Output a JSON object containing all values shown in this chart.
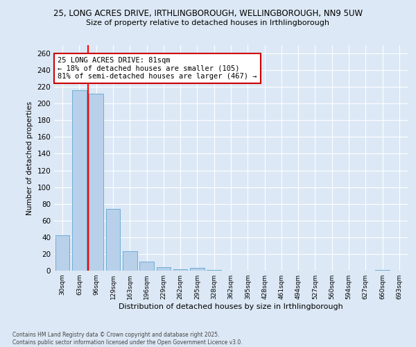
{
  "title1": "25, LONG ACRES DRIVE, IRTHLINGBOROUGH, WELLINGBOROUGH, NN9 5UW",
  "title2": "Size of property relative to detached houses in Irthlingborough",
  "xlabel": "Distribution of detached houses by size in Irthlingborough",
  "ylabel": "Number of detached properties",
  "bar_values": [
    42,
    216,
    212,
    74,
    23,
    11,
    4,
    2,
    3,
    1,
    0,
    0,
    0,
    0,
    0,
    0,
    0,
    0,
    0,
    1,
    0
  ],
  "bar_labels": [
    "30sqm",
    "63sqm",
    "96sqm",
    "129sqm",
    "163sqm",
    "196sqm",
    "229sqm",
    "262sqm",
    "295sqm",
    "328sqm",
    "362sqm",
    "395sqm",
    "428sqm",
    "461sqm",
    "494sqm",
    "527sqm",
    "560sqm",
    "594sqm",
    "627sqm",
    "660sqm",
    "693sqm"
  ],
  "bar_color": "#b8d0ea",
  "bar_edge_color": "#6baed6",
  "red_line_x": 1.5,
  "annotation_text": "25 LONG ACRES DRIVE: 81sqm\n← 18% of detached houses are smaller (105)\n81% of semi-detached houses are larger (467) →",
  "annotation_box_color": "#ffffff",
  "annotation_border_color": "#cc0000",
  "ylim": [
    0,
    270
  ],
  "yticks": [
    0,
    20,
    40,
    60,
    80,
    100,
    120,
    140,
    160,
    180,
    200,
    220,
    240,
    260
  ],
  "background_color": "#dce8f5",
  "grid_color": "#ffffff",
  "footnote": "Contains HM Land Registry data © Crown copyright and database right 2025.\nContains public sector information licensed under the Open Government Licence v3.0."
}
